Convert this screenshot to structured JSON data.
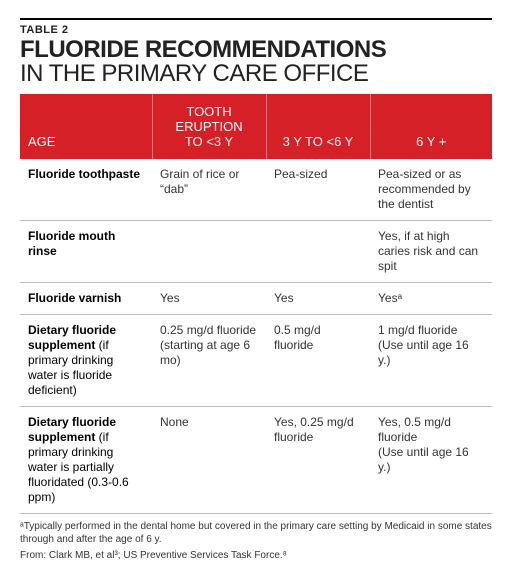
{
  "label": "TABLE 2",
  "title_bold": "FLUORIDE RECOMMENDATIONS",
  "title_thin": "IN THE PRIMARY CARE OFFICE",
  "header_bg": "#d62027",
  "columns": {
    "age": "AGE",
    "b_line1": "TOOTH ERUPTION",
    "b_line2": "TO <3 Y",
    "c": "3 Y TO <6 Y",
    "d": "6 Y +"
  },
  "rows": [
    {
      "label": "Fluoride toothpaste",
      "sub": "",
      "b": "Grain of rice or “dab”",
      "c": "Pea-sized",
      "d": "Pea-sized or as recommended by the dentist"
    },
    {
      "label": "Fluoride mouth rinse",
      "sub": "",
      "b": "",
      "c": "",
      "d": "Yes, if at high caries risk and can spit"
    },
    {
      "label": "Fluoride varnish",
      "sub": "",
      "b": "Yes",
      "c": "Yes",
      "d": "Yesᵃ"
    },
    {
      "label": "Dietary fluoride supplement",
      "sub": " (if primary drinking water is fluoride deficient)",
      "b": "0.25 mg/d fluoride\n(starting at age 6 mo)",
      "c": "0.5 mg/d fluoride",
      "d": "1 mg/d fluoride\n(Use until age 16 y.)"
    },
    {
      "label": "Dietary fluoride supplement",
      "sub": " (if primary drinking water is partially fluoridated (0.3-0.6 ppm)",
      "b": "None",
      "c": "Yes, 0.25 mg/d fluoride",
      "d": "Yes, 0.5 mg/d fluoride\n(Use until age 16 y.)"
    }
  ],
  "footnotes": [
    "ᵃTypically performed in the dental home but covered in the primary care setting by Medicaid in some states through and after the age of 6 y.",
    "From: Clark MB, et al³; US Preventive Services Task Force.⁸"
  ]
}
